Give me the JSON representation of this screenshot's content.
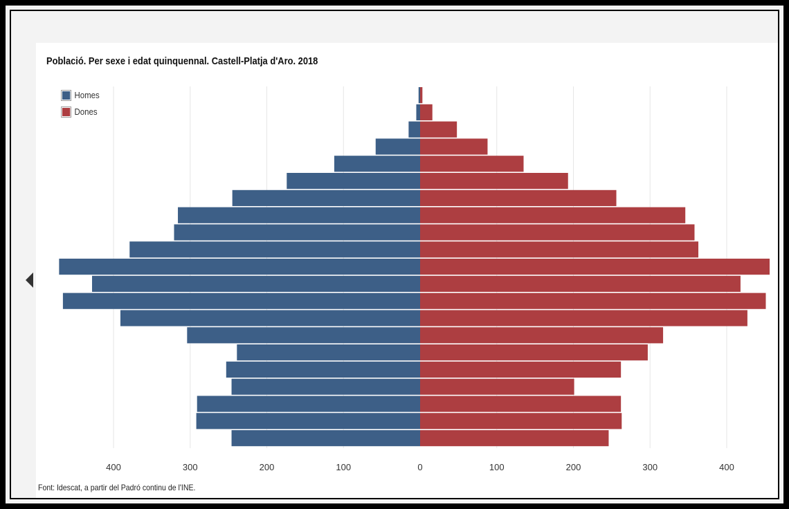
{
  "colors": {
    "homes": "#3d5f87",
    "dones": "#ad3e41",
    "grid": "#e6e6e6"
  },
  "legend": [
    {
      "label": "Homes",
      "color": "#3d5f87"
    },
    {
      "label": "Dones",
      "color": "#ad3e41"
    }
  ],
  "source": "Font: Idescat, a partir del Padró continu de l'INE.",
  "chart_data": {
    "type": "bar",
    "orientation": "horizontal",
    "layout": "population-pyramid",
    "title": "Població. Per sexe i edat quinquennal. Castell-Platja d'Aro. 2018",
    "xlabel": "",
    "ylabel": "",
    "xlim": [
      -475,
      460
    ],
    "x_ticks": [
      {
        "value": -400,
        "label": "400"
      },
      {
        "value": -300,
        "label": "300"
      },
      {
        "value": -200,
        "label": "200"
      },
      {
        "value": -100,
        "label": "100"
      },
      {
        "value": 0,
        "label": "0"
      },
      {
        "value": 100,
        "label": "100"
      },
      {
        "value": 200,
        "label": "200"
      },
      {
        "value": 300,
        "label": "300"
      },
      {
        "value": 400,
        "label": "400"
      }
    ],
    "grid": true,
    "legend_position": "top-left",
    "series": [
      {
        "name": "Homes",
        "color": "#3d5f87",
        "values": [
          2,
          5,
          15,
          58,
          112,
          174,
          245,
          316,
          321,
          379,
          471,
          428,
          466,
          391,
          304,
          239,
          253,
          246,
          291,
          292,
          246
        ]
      },
      {
        "name": "Dones",
        "color": "#ad3e41",
        "values": [
          3,
          16,
          48,
          88,
          135,
          193,
          256,
          346,
          358,
          363,
          456,
          418,
          451,
          427,
          317,
          297,
          262,
          201,
          262,
          263,
          246
        ]
      }
    ]
  }
}
